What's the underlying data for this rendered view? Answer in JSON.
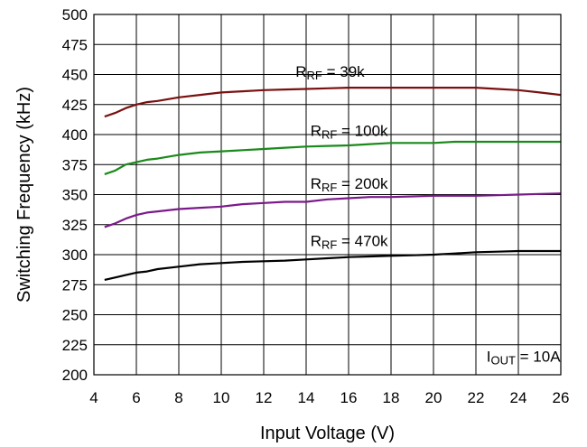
{
  "chart_data": {
    "type": "line",
    "title": "",
    "xlabel": "Input Voltage (V)",
    "ylabel": "Switching Frequency (kHz)",
    "xlim": [
      4,
      26
    ],
    "ylim": [
      200,
      500
    ],
    "xticks": [
      "4",
      "6",
      "8",
      "10",
      "12",
      "14",
      "16",
      "18",
      "20",
      "22",
      "24",
      "26"
    ],
    "yticks": [
      "200",
      "225",
      "250",
      "275",
      "300",
      "325",
      "350",
      "375",
      "400",
      "425",
      "450",
      "475",
      "500"
    ],
    "grid": true,
    "legend": "none",
    "series": [
      {
        "label": {
          "main": "R",
          "sub": "RF",
          "rest": " = 39k"
        },
        "color": "#7a1010",
        "x": [
          4.5,
          5,
          5.5,
          6,
          6.5,
          7,
          8,
          9,
          10,
          11,
          12,
          13,
          14,
          15,
          16,
          17,
          18,
          19,
          20,
          21,
          22,
          23,
          24,
          25,
          26
        ],
        "y": [
          415,
          418,
          422,
          425,
          427,
          428,
          431,
          433,
          435,
          436,
          437,
          437.5,
          438,
          438.5,
          439,
          439,
          439,
          439,
          439,
          439,
          439,
          438,
          437,
          435,
          433
        ]
      },
      {
        "label": {
          "main": "R",
          "sub": "RF",
          "rest": " = 100k"
        },
        "color": "#1a8a1a",
        "x": [
          4.5,
          5,
          5.5,
          6,
          6.5,
          7,
          8,
          9,
          10,
          11,
          12,
          13,
          14,
          15,
          16,
          17,
          18,
          19,
          20,
          21,
          22,
          23,
          24,
          25,
          26
        ],
        "y": [
          367,
          370,
          375,
          377,
          379,
          380,
          383,
          385,
          386,
          387,
          388,
          389,
          390,
          390.5,
          391,
          392,
          393,
          393,
          393,
          394,
          394,
          394,
          394,
          394,
          394
        ]
      },
      {
        "label": {
          "main": "R",
          "sub": "RF",
          "rest": " = 200k"
        },
        "color": "#7a1a8a",
        "x": [
          4.5,
          5,
          5.5,
          6,
          6.5,
          7,
          8,
          9,
          10,
          11,
          12,
          13,
          14,
          15,
          16,
          17,
          18,
          19,
          20,
          21,
          22,
          23,
          24,
          25,
          26
        ],
        "y": [
          323,
          326,
          330,
          333,
          335,
          336,
          338,
          339,
          340,
          342,
          343,
          344,
          344,
          346,
          347,
          348,
          348,
          348.5,
          349,
          349,
          349,
          349.5,
          350,
          350.5,
          351
        ]
      },
      {
        "label": {
          "main": "R",
          "sub": "RF",
          "rest": " = 470k"
        },
        "color": "#000000",
        "x": [
          4.5,
          5,
          5.5,
          6,
          6.5,
          7,
          8,
          9,
          10,
          11,
          12,
          13,
          14,
          15,
          16,
          17,
          18,
          19,
          20,
          21,
          22,
          23,
          24,
          25,
          26
        ],
        "y": [
          279,
          281,
          283,
          285,
          286,
          288,
          290,
          292,
          293,
          294,
          294.5,
          295,
          296,
          297,
          298,
          298.5,
          299,
          299.5,
          300,
          301,
          302,
          302.5,
          303,
          303,
          303
        ]
      }
    ],
    "annotations": [
      {
        "main": "R",
        "sub": "RF",
        "rest": " = 39k",
        "x": 13.5,
        "y": 448
      },
      {
        "main": "R",
        "sub": "RF",
        "rest": " = 100k",
        "x": 14.2,
        "y": 399
      },
      {
        "main": "R",
        "sub": "RF",
        "rest": " = 200k",
        "x": 14.2,
        "y": 355
      },
      {
        "main": "R",
        "sub": "RF",
        "rest": " = 470k",
        "x": 14.2,
        "y": 307
      },
      {
        "main": "I",
        "sub": "OUT",
        "rest": " = 10A",
        "x": 22.5,
        "y": 211
      }
    ]
  }
}
